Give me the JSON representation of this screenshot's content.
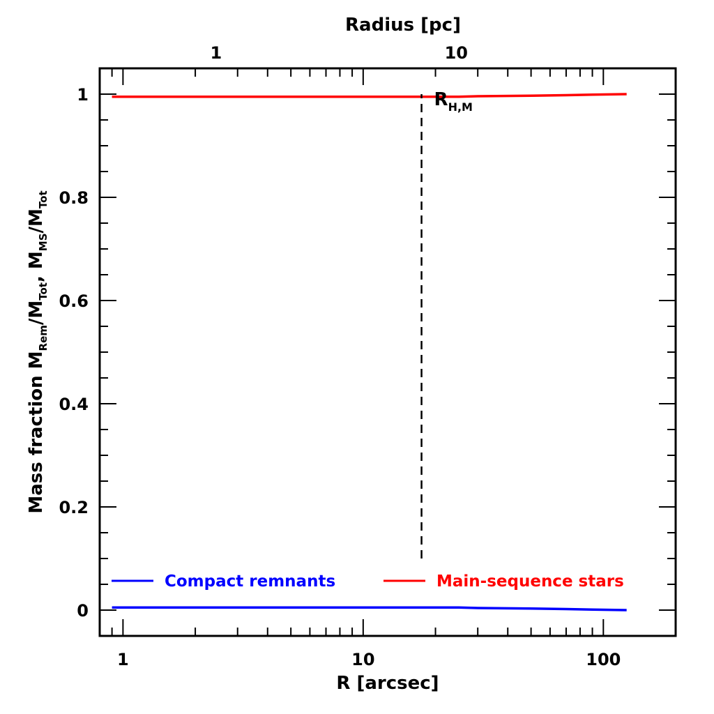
{
  "chart_data": {
    "type": "line",
    "xlabel": "R [arcsec]",
    "top_xlabel": "Radius [pc]",
    "ylabel": "Mass fraction   M_Rem/M_Tot,  M_MS/M_Tot",
    "ylabel_parts": {
      "prefix": "Mass fraction   M",
      "sub1": "Rem",
      "mid1": "/M",
      "sub2": "Tot",
      "mid2": ",  M",
      "sub3": "MS",
      "mid3": "/M",
      "sub4": "Tot"
    },
    "x_scale": "log",
    "xlim": [
      0.8,
      200
    ],
    "ylim": [
      -0.05,
      1.05
    ],
    "x_ticks": [
      1,
      10,
      100
    ],
    "x_tick_labels": [
      "1",
      "10",
      "100"
    ],
    "top_x_ticks_arcsec": [
      2.44,
      24.4
    ],
    "top_x_tick_labels": [
      "1",
      "10"
    ],
    "y_ticks": [
      0,
      0.2,
      0.4,
      0.6,
      0.8,
      1
    ],
    "y_tick_labels": [
      "0",
      "0.2",
      "0.4",
      "0.6",
      "0.8",
      "1"
    ],
    "grid": false,
    "legend_placement": "bottom",
    "series": [
      {
        "name": "Compact remnants",
        "color": "#0000ff",
        "x": [
          0.9,
          2,
          5,
          10,
          20,
          25,
          30,
          50,
          70,
          90,
          125
        ],
        "y": [
          0.005,
          0.005,
          0.005,
          0.005,
          0.005,
          0.005,
          0.004,
          0.003,
          0.002,
          0.001,
          0.0
        ]
      },
      {
        "name": "Main-sequence stars",
        "color": "#ff0000",
        "x": [
          0.9,
          2,
          5,
          10,
          20,
          25,
          30,
          50,
          70,
          90,
          125
        ],
        "y": [
          0.995,
          0.995,
          0.995,
          0.995,
          0.995,
          0.995,
          0.996,
          0.997,
          0.998,
          0.999,
          1.0
        ]
      }
    ],
    "annotations": [
      {
        "label_main": "R",
        "label_sub": "H,M",
        "x": 17.5,
        "y_from": 0.1,
        "y_to": 1.0
      }
    ]
  }
}
